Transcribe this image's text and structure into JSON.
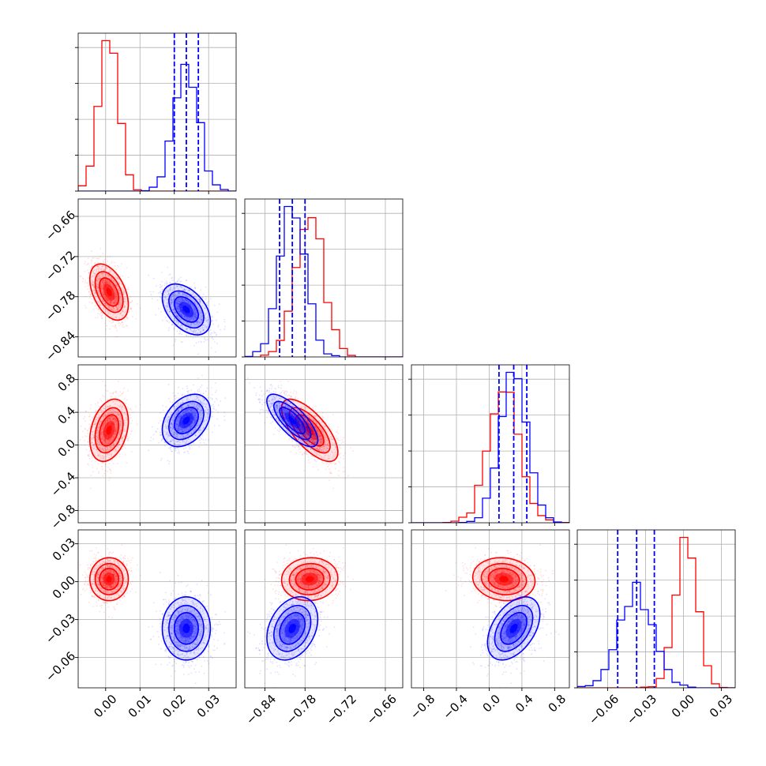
{
  "figure": {
    "description": "corner plot of posterior samples for four parameters, two distributions overlaid (red and blue)"
  },
  "colors": {
    "red": "#ff0000",
    "blue": "#0000ff",
    "grid": "#b0b0b0",
    "frame": "#000000"
  },
  "chart_data": {
    "type": "corner",
    "n_params": 4,
    "grid": true,
    "series": [
      {
        "color": "red",
        "means": [
          0.001,
          -0.773,
          0.18,
          0.002
        ],
        "stds": [
          0.0028,
          0.021,
          0.19,
          0.0085
        ],
        "correlations": [
          [
            0,
            1,
            -0.45
          ],
          [
            0,
            2,
            0.3
          ],
          [
            1,
            2,
            -0.7
          ],
          [
            1,
            3,
            0.05
          ],
          [
            2,
            3,
            -0.1
          ]
        ]
      },
      {
        "color": "blue",
        "means": [
          0.0235,
          -0.799,
          0.3,
          -0.037
        ],
        "stds": [
          0.0035,
          0.019,
          0.16,
          0.0125
        ],
        "correlations": [
          [
            0,
            1,
            -0.45
          ],
          [
            0,
            2,
            0.35
          ],
          [
            1,
            2,
            -0.75
          ],
          [
            1,
            3,
            0.3
          ],
          [
            2,
            3,
            0.45
          ]
        ],
        "quantiles": [
          [
            0.02,
            0.0235,
            0.027
          ],
          [
            -0.818,
            -0.799,
            -0.78
          ],
          [
            0.12,
            0.3,
            0.46
          ],
          [
            -0.052,
            -0.037,
            -0.023
          ]
        ]
      }
    ],
    "axes": [
      {
        "range": [
          -0.008,
          0.038
        ],
        "ticks": [
          0.0,
          0.01,
          0.02,
          0.03
        ],
        "tick_labels": [
          "0.00",
          "0.01",
          "0.02",
          "0.03"
        ]
      },
      {
        "range": [
          -0.87,
          -0.634
        ],
        "ticks": [
          -0.84,
          -0.78,
          -0.72,
          -0.66
        ],
        "tick_labels": [
          "−0.84",
          "−0.78",
          "−0.72",
          "−0.66"
        ]
      },
      {
        "range": [
          -0.95,
          0.98
        ],
        "ticks": [
          -0.8,
          -0.4,
          0.0,
          0.4,
          0.8
        ],
        "tick_labels": [
          "−0.8",
          "−0.4",
          "0.0",
          "0.4",
          "0.8"
        ]
      },
      {
        "range": [
          -0.084,
          0.041
        ],
        "ticks": [
          -0.06,
          -0.03,
          0.0,
          0.03
        ],
        "tick_labels": [
          "−0.06",
          "−0.03",
          "0.00",
          "0.03"
        ]
      }
    ]
  }
}
